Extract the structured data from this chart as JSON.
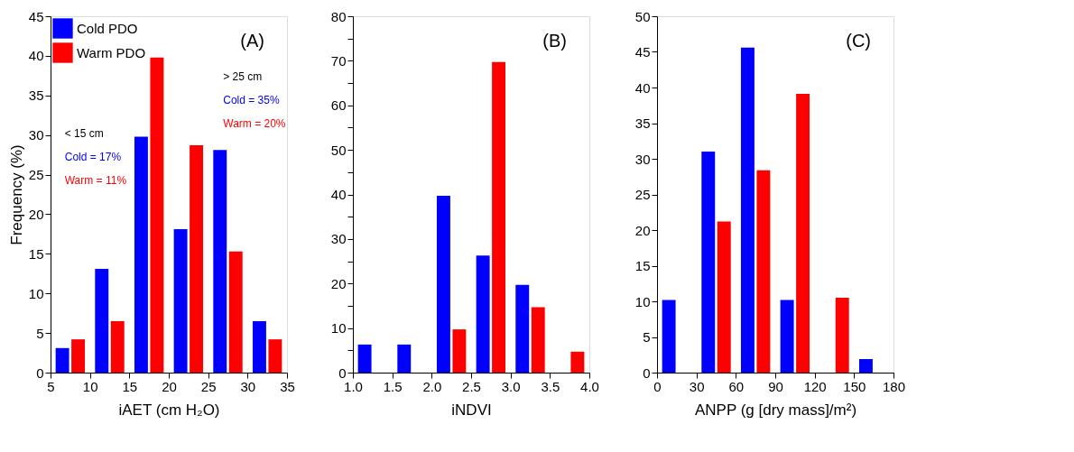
{
  "chart_data": [
    {
      "type": "bar",
      "title": "(A)",
      "xlabel": "iAET (cm H₂O)",
      "ylabel": "Frequency (%)",
      "legend": "top left",
      "grid": false,
      "xlim": [
        5,
        35
      ],
      "xticks": [
        5,
        10,
        15,
        20,
        25,
        30,
        35
      ],
      "ylim": [
        0,
        45
      ],
      "yticks": [
        0,
        5,
        10,
        15,
        20,
        25,
        30,
        35,
        40,
        45
      ],
      "series": [
        {
          "name": "Cold PDO",
          "color": "#0000ff",
          "x": [
            6.5,
            11.5,
            16.5,
            21.5,
            26.5,
            31.5
          ],
          "values": [
            3.1,
            13.1,
            29.8,
            18.1,
            28.1,
            6.5
          ]
        },
        {
          "name": "Warm PDO",
          "color": "#ff0000",
          "x": [
            8.5,
            13.5,
            18.5,
            23.5,
            28.5,
            33.5
          ],
          "values": [
            4.2,
            6.5,
            39.8,
            28.7,
            15.3,
            4.2
          ]
        }
      ],
      "annotations": [
        "< 15 cm",
        "Cold = 17%",
        "Warm = 11%",
        "> 25 cm",
        "Cold = 35%",
        "Warm = 20%"
      ]
    },
    {
      "type": "bar",
      "title": "(B)",
      "xlabel": "iNDVI",
      "legend": "top left",
      "grid": false,
      "xlim": [
        1.0,
        4.0
      ],
      "xticks": [
        {
          "value": 1.0,
          "label": "1.0"
        },
        {
          "value": 1.5,
          "label": "1.5"
        },
        {
          "value": 2.0,
          "label": "2.0"
        },
        {
          "value": 2.5,
          "label": "2.5"
        },
        {
          "value": 3.0,
          "label": "3.0"
        },
        {
          "value": 3.5,
          "label": "3.5"
        },
        {
          "value": 4.0,
          "label": "4.0"
        }
      ],
      "ylim": [
        0,
        80
      ],
      "yticks": [
        0,
        {
          "value": 5,
          "label": null
        },
        10,
        {
          "value": 15,
          "label": null
        },
        20,
        {
          "value": 25,
          "label": null
        },
        30,
        {
          "value": 35,
          "label": null
        },
        40,
        {
          "value": 45,
          "label": null
        },
        50,
        {
          "value": 55,
          "label": null
        },
        60,
        {
          "value": 65,
          "label": null
        },
        70,
        {
          "value": 75,
          "label": null
        },
        80
      ],
      "series": [
        {
          "name": "Cold PDO",
          "color": "#0000ff",
          "x": [
            1.15,
            1.65,
            2.15,
            2.65,
            3.15
          ],
          "values": [
            6.3,
            6.3,
            39.7,
            26.3,
            19.7
          ]
        },
        {
          "name": "Warm PDO",
          "color": "#ff0000",
          "x": [
            2.35,
            2.85,
            3.35,
            3.85
          ],
          "values": [
            9.7,
            69.7,
            14.7,
            4.7
          ]
        }
      ]
    },
    {
      "type": "bar",
      "title": "(C)",
      "xlabel": "ANPP (g [dry mass]/m²)",
      "legend": "top left",
      "grid": false,
      "xlim": [
        0,
        180
      ],
      "xticks": [
        0,
        30,
        60,
        90,
        120,
        150,
        180
      ],
      "ylim": [
        0,
        50
      ],
      "yticks": [
        0,
        5,
        10,
        15,
        20,
        25,
        30,
        35,
        40,
        45,
        50
      ],
      "series": [
        {
          "name": "Cold PDO",
          "color": "#0000ff",
          "x": [
            9,
            39,
            69,
            99,
            159
          ],
          "values": [
            10.2,
            31.0,
            45.6,
            10.2,
            1.9
          ]
        },
        {
          "name": "Warm PDO",
          "color": "#ff0000",
          "x": [
            51,
            81,
            111,
            141
          ],
          "values": [
            21.2,
            28.4,
            39.1,
            10.5
          ]
        }
      ]
    }
  ]
}
